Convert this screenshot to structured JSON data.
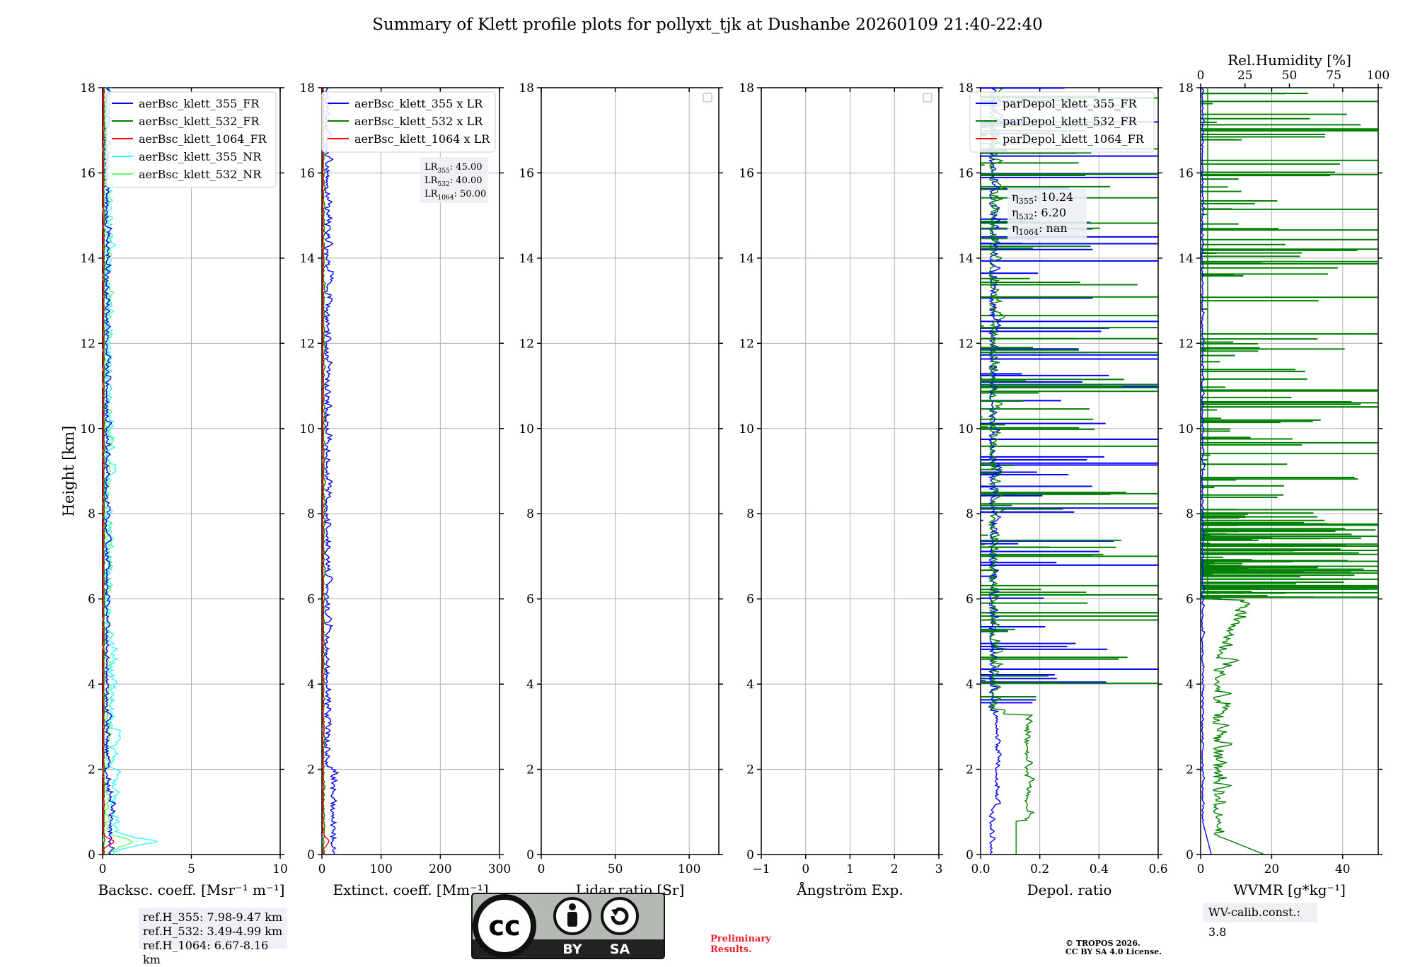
{
  "title": "Summary of Klett profile plots for pollyxt_tjk at Dushanbe 20260109 21:40-22:40",
  "chart_data": [
    {
      "type": "line",
      "panel": "backscatter",
      "xlabel": "Backsc. coeff. [Msr⁻¹ m⁻¹]",
      "ylabel": "Height [km]",
      "xlim": [
        0,
        10
      ],
      "ylim": [
        0,
        18
      ],
      "xticks": [
        "0",
        "5",
        "10"
      ],
      "yticks": [
        "0",
        "2",
        "4",
        "6",
        "8",
        "10",
        "12",
        "14",
        "16",
        "18"
      ],
      "legend_placement": "top-right",
      "series": [
        {
          "name": "aerBsc_klett_355_FR",
          "color": "#0000ff"
        },
        {
          "name": "aerBsc_klett_532_FR",
          "color": "#008000"
        },
        {
          "name": "aerBsc_klett_1064_FR",
          "color": "#ff0000"
        },
        {
          "name": "aerBsc_klett_355_NR",
          "color": "#33ffff"
        },
        {
          "name": "aerBsc_klett_532_NR",
          "color": "#66ff66"
        }
      ]
    },
    {
      "type": "line",
      "panel": "extinction",
      "xlabel": "Extinct. coeff. [Mm⁻¹]",
      "xlim": [
        0,
        300
      ],
      "ylim": [
        0,
        18
      ],
      "xticks": [
        "0",
        "100",
        "200",
        "300"
      ],
      "yticks": [
        "0",
        "2",
        "4",
        "6",
        "8",
        "10",
        "12",
        "14",
        "16",
        "18"
      ],
      "legend_placement": "top-right",
      "series": [
        {
          "name": "aerBsc_klett_355 x LR",
          "color": "#0000ff"
        },
        {
          "name": "aerBsc_klett_532 x LR",
          "color": "#008000"
        },
        {
          "name": "aerBsc_klett_1064 x LR",
          "color": "#ff0000"
        }
      ],
      "annotation": [
        {
          "sym": "LR",
          "sub": "355",
          "val": ": 45.00"
        },
        {
          "sym": "LR",
          "sub": "532",
          "val": ": 40.00"
        },
        {
          "sym": "LR",
          "sub": "1064",
          "val": ": 50.00"
        }
      ]
    },
    {
      "type": "line",
      "panel": "lidar_ratio",
      "xlabel": "Lidar ratio [Sr]",
      "xlim": [
        0,
        120
      ],
      "ylim": [
        0,
        18
      ],
      "xticks": [
        "0",
        "50",
        "100"
      ],
      "yticks": [
        "0",
        "2",
        "4",
        "6",
        "8",
        "10",
        "12",
        "14",
        "16",
        "18"
      ],
      "series": []
    },
    {
      "type": "line",
      "panel": "angstrom",
      "xlabel": "Ångström Exp.",
      "xlim": [
        -1,
        3
      ],
      "ylim": [
        0,
        18
      ],
      "xticks": [
        "−1",
        "0",
        "1",
        "2",
        "3"
      ],
      "yticks": [
        "0",
        "2",
        "4",
        "6",
        "8",
        "10",
        "12",
        "14",
        "16",
        "18"
      ],
      "series": []
    },
    {
      "type": "line",
      "panel": "depolarization",
      "xlabel": "Depol. ratio",
      "xlim": [
        0,
        0.6
      ],
      "ylim": [
        0,
        18
      ],
      "xticks": [
        "0.0",
        "0.2",
        "0.4",
        "0.6"
      ],
      "yticks": [
        "0",
        "2",
        "4",
        "6",
        "8",
        "10",
        "12",
        "14",
        "16",
        "18"
      ],
      "legend_placement": "top-right",
      "series": [
        {
          "name": "parDepol_klett_355_FR",
          "color": "#0000ff"
        },
        {
          "name": "parDepol_klett_532_FR",
          "color": "#008000"
        },
        {
          "name": "parDepol_klett_1064_FR",
          "color": "#ff0000"
        }
      ],
      "annotation": [
        {
          "sym": "η",
          "sub": "355",
          "val": ": 10.24"
        },
        {
          "sym": "η",
          "sub": "532",
          "val": ": 6.20"
        },
        {
          "sym": "η",
          "sub": "1064",
          "val": ": nan"
        }
      ]
    },
    {
      "type": "line",
      "panel": "water_vapor",
      "xlabel": "WVMR [g*kg⁻¹]",
      "xlim": [
        0,
        50
      ],
      "ylim": [
        0,
        18
      ],
      "xticks": [
        "0",
        "20",
        "40"
      ],
      "yticks": [
        "0",
        "2",
        "4",
        "6",
        "8",
        "10",
        "12",
        "14",
        "16",
        "18"
      ],
      "top_axis": {
        "label": "Rel.Humidity [%]",
        "lim": [
          0,
          100
        ],
        "ticks": [
          "0",
          "25",
          "50",
          "75",
          "100"
        ]
      },
      "series": [
        {
          "name": "WVMR",
          "color": "#0000ff"
        },
        {
          "name": "RH",
          "color": "#008000"
        }
      ]
    }
  ],
  "ref_heights": [
    "ref.H_355: 7.98-9.47 km",
    "ref.H_532: 3.49-4.99 km",
    "ref.H_1064: 6.67-8.16 km"
  ],
  "wv_calib": "WV-calib.const.: 3.8",
  "preliminary": [
    "Preliminary",
    "Results."
  ],
  "copyright": [
    "© TROPOS 2026.",
    "CC BY SA 4.0 License."
  ],
  "license_badge": {
    "cc": "cc",
    "by": "BY",
    "sa": "SA"
  }
}
